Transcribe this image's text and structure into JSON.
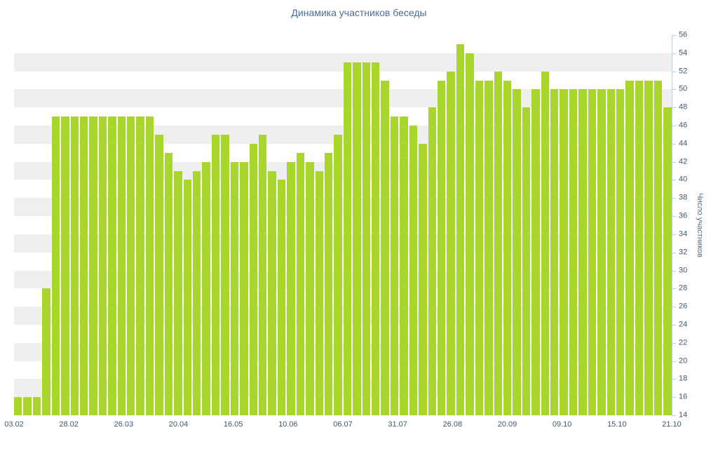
{
  "chart_data": {
    "type": "bar",
    "title": "Динамика участников беседы",
    "xlabel": "",
    "ylabel": "Число участников",
    "ylim": [
      14,
      56
    ],
    "ytick_step": 2,
    "yticks": [
      14,
      16,
      18,
      20,
      22,
      24,
      26,
      28,
      30,
      32,
      34,
      36,
      38,
      40,
      42,
      44,
      46,
      48,
      50,
      52,
      54,
      56
    ],
    "x_tick_labels": [
      "03.02",
      "28.02",
      "26.03",
      "20.04",
      "16.05",
      "10.06",
      "06.07",
      "31.07",
      "26.08",
      "20.09",
      "09.10",
      "15.10",
      "21.10"
    ],
    "values": [
      16,
      16,
      16,
      28,
      47,
      47,
      47,
      47,
      47,
      47,
      47,
      47,
      47,
      47,
      47,
      45,
      43,
      41,
      40,
      41,
      42,
      45,
      45,
      42,
      42,
      44,
      45,
      41,
      40,
      42,
      43,
      42,
      41,
      43,
      45,
      53,
      53,
      53,
      53,
      51,
      47,
      47,
      46,
      44,
      48,
      51,
      52,
      55,
      54,
      51,
      51,
      52,
      51,
      50,
      48,
      50,
      52,
      50,
      50,
      50,
      50,
      50,
      50,
      50,
      50,
      51,
      51,
      51,
      51,
      48
    ],
    "legend": "none",
    "grid": "alternating horizontal bands every 2 units",
    "y_axis_position": "right"
  },
  "colors": {
    "bar": "#a9d62c",
    "band": "#efefef",
    "axis_line": "#c0cbdb",
    "axis_label": "#3e5874",
    "title": "#4a6d99",
    "y_title": "#53718e",
    "background": "#ffffff"
  }
}
